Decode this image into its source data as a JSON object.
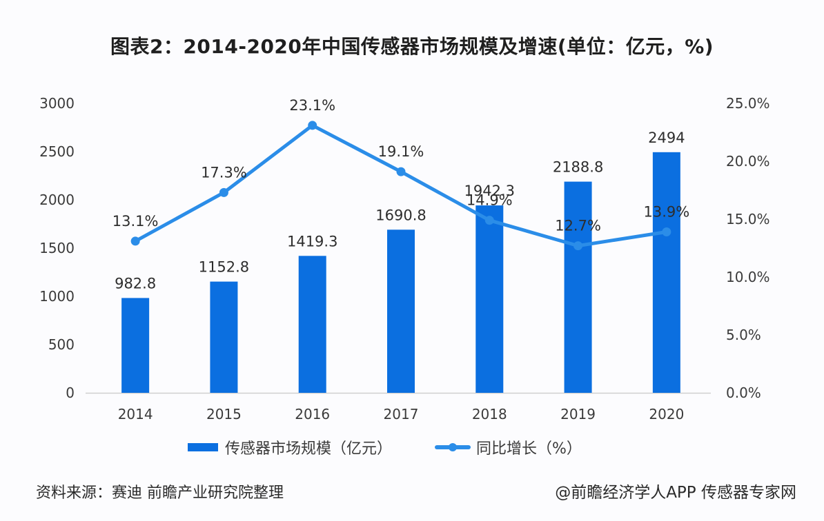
{
  "title": "图表2：2014-2020年中国传感器市场规模及增速(单位：亿元，%)",
  "legend": {
    "bar_label": "传感器市场规模（亿元）",
    "line_label": "同比增长（%）"
  },
  "source": "资料来源：赛迪 前瞻产业研究院整理",
  "credit": "@前瞻经济学人APP 传感器专家网",
  "colors": {
    "bar": "#0b6fe0",
    "line": "#2b8de8",
    "axis": "#cfcfcf"
  },
  "chart_data": {
    "type": "bar",
    "title": "图表2：2014-2020年中国传感器市场规模及增速(单位：亿元，%)",
    "categories": [
      "2014",
      "2015",
      "2016",
      "2017",
      "2018",
      "2019",
      "2020"
    ],
    "series": [
      {
        "name": "传感器市场规模（亿元）",
        "type": "bar",
        "axis": "left",
        "values": [
          982.8,
          1152.8,
          1419.3,
          1690.8,
          1942.3,
          2188.8,
          2494
        ],
        "labels": [
          "982.8",
          "1152.8",
          "1419.3",
          "1690.8",
          "1942.3",
          "2188.8",
          "2494"
        ]
      },
      {
        "name": "同比增长（%）",
        "type": "line",
        "axis": "right",
        "values": [
          13.1,
          17.3,
          23.1,
          19.1,
          14.9,
          12.7,
          13.9
        ],
        "labels": [
          "13.1%",
          "17.3%",
          "23.1%",
          "19.1%",
          "14.9%",
          "12.7%",
          "13.9%"
        ]
      }
    ],
    "left_axis": {
      "ylim": [
        0,
        3000
      ],
      "ticks": [
        "0",
        "500",
        "1000",
        "1500",
        "2000",
        "2500",
        "3000"
      ]
    },
    "right_axis": {
      "ylim": [
        0,
        25
      ],
      "ticks": [
        "0.0%",
        "5.0%",
        "10.0%",
        "15.0%",
        "20.0%",
        "25.0%"
      ]
    },
    "xlabel": "",
    "ylabel": "",
    "grid": false,
    "legend_position": "bottom"
  }
}
